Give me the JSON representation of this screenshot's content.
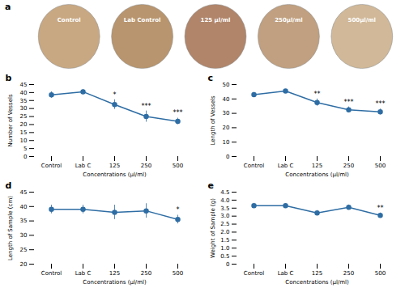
{
  "chart_data": [
    {
      "type": "image",
      "title": "a",
      "annotations": [
        "Control",
        "Lab Control",
        "125 μl/ml",
        "250μl/ml",
        "500μl/ml"
      ],
      "colors": [
        "#c8a882",
        "#b8956e",
        "#b0856a",
        "#c0a080",
        "#d0b898"
      ]
    },
    {
      "type": "line",
      "title": "b",
      "xlabel": "Concentrations (μl/ml)",
      "ylabel": "Number of Vessels",
      "categories": [
        "Control",
        "Lab C",
        "125",
        "250",
        "500"
      ],
      "values": [
        38.5,
        40.5,
        32.5,
        25.0,
        22.0
      ],
      "errors": [
        2.0,
        1.5,
        3.0,
        3.5,
        2.0
      ],
      "annotations": [
        null,
        null,
        "*",
        "***",
        "***"
      ],
      "ylim": [
        0,
        45
      ],
      "yticks": [
        0,
        5,
        10,
        15,
        20,
        25,
        30,
        35,
        40,
        45
      ],
      "color": "#2E6DA4",
      "marker": "o"
    },
    {
      "type": "line",
      "title": "c",
      "xlabel": "Concentrations (μl/ml)",
      "ylabel": "Length of Vessels",
      "categories": [
        "Control",
        "Lab C",
        "125",
        "250",
        "500"
      ],
      "values": [
        43.0,
        45.5,
        37.5,
        32.5,
        31.0
      ],
      "errors": [
        1.5,
        1.0,
        2.5,
        2.0,
        2.0
      ],
      "annotations": [
        null,
        null,
        "**",
        "***",
        "***"
      ],
      "ylim": [
        0,
        50
      ],
      "yticks": [
        0,
        10,
        20,
        30,
        40,
        50
      ],
      "color": "#2E6DA4",
      "marker": "o"
    },
    {
      "type": "line",
      "title": "d",
      "xlabel": "Concentrations (μl/ml)",
      "ylabel": "Length of Sample (cm)",
      "categories": [
        "Control",
        "Lab C",
        "125",
        "250",
        "500"
      ],
      "values": [
        39.0,
        39.0,
        38.0,
        38.5,
        35.5
      ],
      "errors": [
        1.5,
        1.5,
        2.5,
        2.5,
        1.5
      ],
      "annotations": [
        null,
        null,
        null,
        null,
        "*"
      ],
      "ylim": [
        20,
        45
      ],
      "yticks": [
        20,
        25,
        30,
        35,
        40,
        45
      ],
      "color": "#2E6DA4",
      "marker": "o"
    },
    {
      "type": "line",
      "title": "e",
      "xlabel": "Concentrations (μl/ml)",
      "ylabel": "Weight of Sample (g)",
      "categories": [
        "Control",
        "Lab C",
        "125",
        "250",
        "500"
      ],
      "values": [
        3.65,
        3.65,
        3.2,
        3.55,
        3.05
      ],
      "errors": [
        0.15,
        0.1,
        0.15,
        0.15,
        0.15
      ],
      "annotations": [
        null,
        null,
        null,
        null,
        "**"
      ],
      "ylim": [
        0,
        4.5
      ],
      "yticks": [
        0,
        0.5,
        {
          "value": 1.0,
          "label": "1.0"
        },
        1.5,
        {
          "value": 2.0,
          "label": "2.0"
        },
        2.5,
        {
          "value": 3.0,
          "label": "3.0"
        },
        3.5,
        {
          "value": 4.0,
          "label": "4.0"
        },
        4.5
      ],
      "color": "#2E6DA4",
      "marker": "o"
    }
  ]
}
